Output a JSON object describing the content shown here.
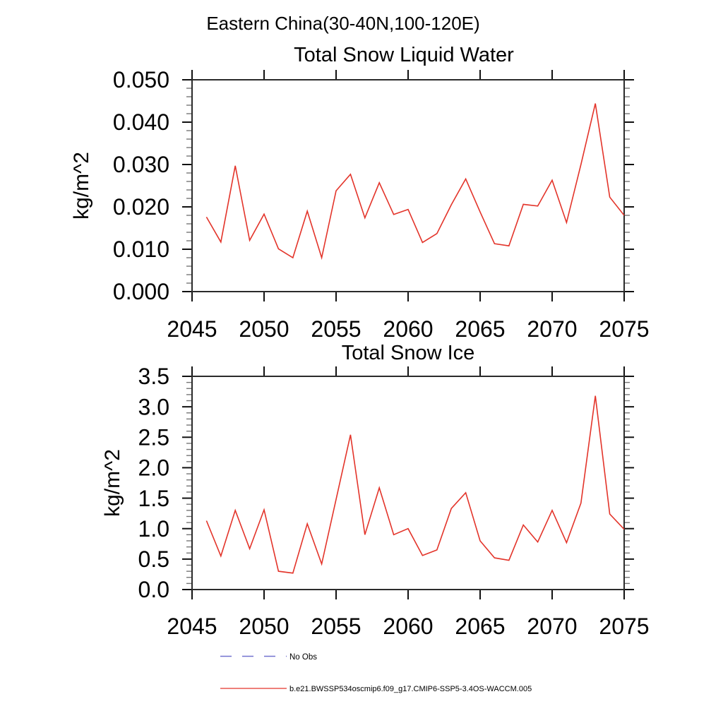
{
  "header": {
    "title": "Eastern China(30-40N,100-120E)"
  },
  "colors": {
    "series_line": "#e3342a",
    "no_obs_line": "#7272cf",
    "axis": "#2b2b2b",
    "minor_tick": "#777777"
  },
  "legend": {
    "no_obs_label": "No Obs",
    "series_label": "b.e21.BWSSP534oscmip6.f09_g17.CMIP6-SSP5-3.4OS-WACCM.005"
  },
  "chart_data": [
    {
      "type": "line",
      "title": "Total Snow Liquid Water",
      "ylabel": "kg/m^2",
      "xlabel": "",
      "legend_position": "bottom",
      "grid": false,
      "xlim": [
        2045,
        2075
      ],
      "ylim": [
        0,
        0.05
      ],
      "xticks": [
        2045,
        2050,
        2055,
        2060,
        2065,
        2070,
        2075
      ],
      "ytick_step": 0.01,
      "yminor_step": 0.002,
      "ytick_decimals": 3,
      "series_name": "b.e21.BWSSP534oscmip6.f09_g17.CMIP6-SSP5-3.4OS-WACCM.005",
      "x": [
        2046,
        2047,
        2048,
        2049,
        2050,
        2051,
        2052,
        2053,
        2054,
        2055,
        2056,
        2057,
        2058,
        2059,
        2060,
        2061,
        2062,
        2063,
        2064,
        2065,
        2066,
        2067,
        2068,
        2069,
        2070,
        2071,
        2072,
        2073,
        2074,
        2075
      ],
      "values": [
        0.0176,
        0.0117,
        0.0297,
        0.0121,
        0.0183,
        0.0101,
        0.008,
        0.019,
        0.008,
        0.0238,
        0.0277,
        0.0174,
        0.0257,
        0.0182,
        0.0194,
        0.0116,
        0.0137,
        0.0205,
        0.0266,
        0.0188,
        0.0113,
        0.0108,
        0.0206,
        0.0202,
        0.0263,
        0.0163,
        0.03,
        0.0444,
        0.0223,
        0.018
      ]
    },
    {
      "type": "line",
      "title": "Total Snow Ice",
      "ylabel": "kg/m^2",
      "xlabel": "",
      "legend_position": "bottom",
      "grid": false,
      "xlim": [
        2045,
        2075
      ],
      "ylim": [
        0,
        3.5
      ],
      "xticks": [
        2045,
        2050,
        2055,
        2060,
        2065,
        2070,
        2075
      ],
      "ytick_step": 0.5,
      "yminor_step": 0.1,
      "ytick_decimals": 1,
      "series_name": "b.e21.BWSSP534oscmip6.f09_g17.CMIP6-SSP5-3.4OS-WACCM.005",
      "x": [
        2046,
        2047,
        2048,
        2049,
        2050,
        2051,
        2052,
        2053,
        2054,
        2055,
        2056,
        2057,
        2058,
        2059,
        2060,
        2061,
        2062,
        2063,
        2064,
        2065,
        2066,
        2067,
        2068,
        2069,
        2070,
        2071,
        2072,
        2073,
        2074,
        2075
      ],
      "values": [
        1.13,
        0.55,
        1.3,
        0.67,
        1.31,
        0.3,
        0.27,
        1.08,
        0.42,
        1.48,
        2.54,
        0.9,
        1.67,
        0.9,
        1.0,
        0.56,
        0.65,
        1.33,
        1.59,
        0.8,
        0.52,
        0.48,
        1.06,
        0.78,
        1.3,
        0.77,
        1.42,
        3.18,
        1.24,
        0.99
      ]
    }
  ]
}
